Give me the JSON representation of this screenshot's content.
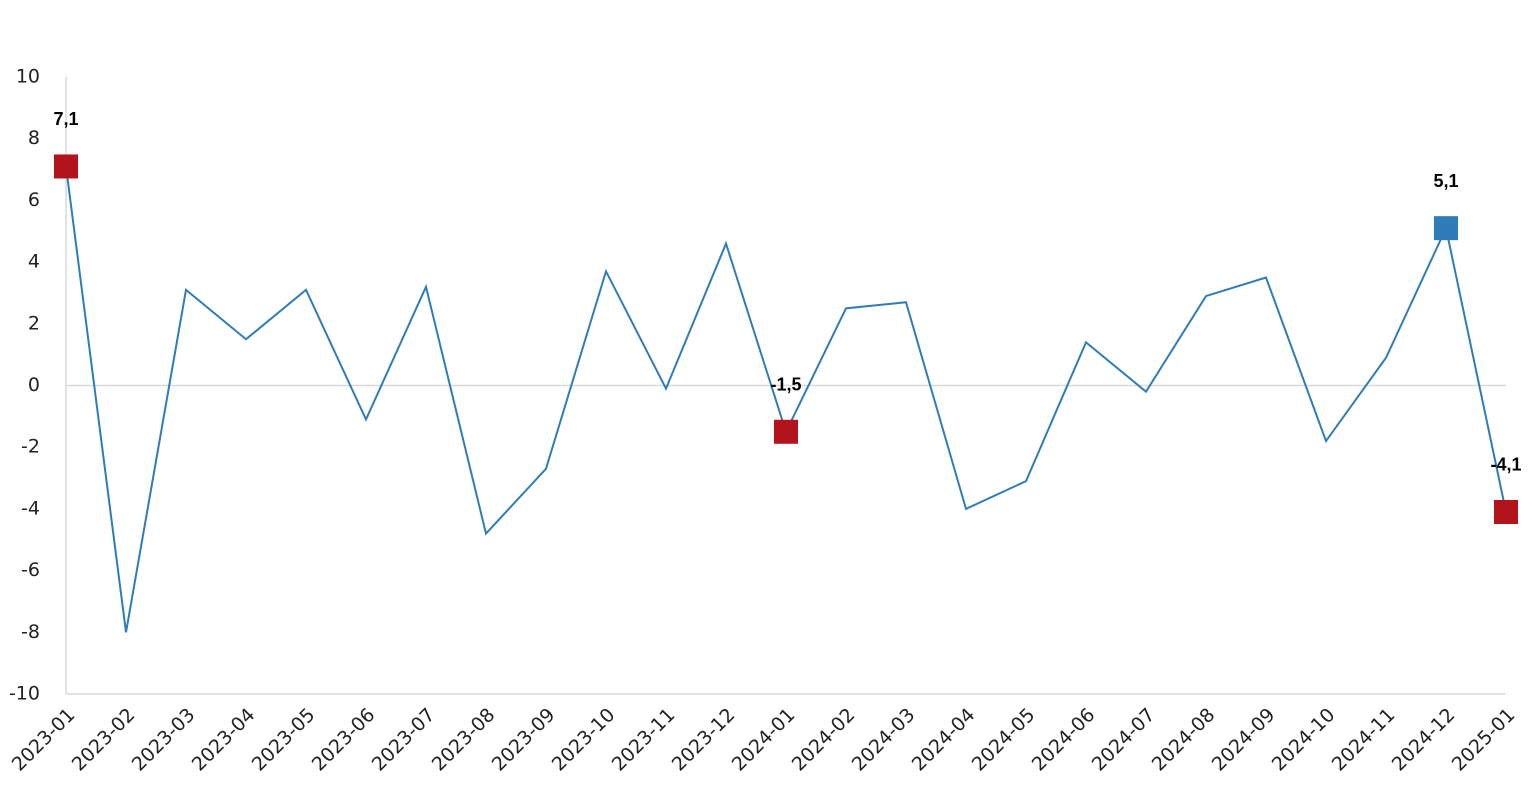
{
  "chart_data": {
    "type": "line",
    "categories": [
      "2023-01",
      "2023-02",
      "2023-03",
      "2023-04",
      "2023-05",
      "2023-06",
      "2023-07",
      "2023-08",
      "2023-09",
      "2023-10",
      "2023-11",
      "2023-12",
      "2024-01",
      "2024-02",
      "2024-03",
      "2024-04",
      "2024-05",
      "2024-06",
      "2024-07",
      "2024-08",
      "2024-09",
      "2024-10",
      "2024-11",
      "2024-12",
      "2025-01"
    ],
    "values": [
      7.1,
      -8.0,
      3.1,
      1.5,
      3.1,
      -1.1,
      3.2,
      -4.8,
      -2.7,
      3.7,
      -0.1,
      4.6,
      -1.5,
      2.5,
      2.7,
      -4.0,
      -3.1,
      1.4,
      -0.2,
      2.9,
      3.5,
      -1.8,
      0.9,
      5.1,
      -4.1
    ],
    "value_labels": [
      "7,1",
      null,
      null,
      null,
      null,
      null,
      null,
      null,
      null,
      null,
      null,
      null,
      "-1,5",
      null,
      null,
      null,
      null,
      null,
      null,
      null,
      null,
      null,
      null,
      "5,1",
      "-4,1"
    ],
    "marker_colors": [
      "#b3141c",
      null,
      null,
      null,
      null,
      null,
      null,
      null,
      null,
      null,
      null,
      null,
      "#b3141c",
      null,
      null,
      null,
      null,
      null,
      null,
      null,
      null,
      null,
      null,
      "#2f7db8",
      "#b3141c"
    ],
    "color": "#2f7db8",
    "ylim": [
      -10,
      10
    ],
    "yticks": [
      -10,
      -8,
      -6,
      -4,
      -2,
      0,
      2,
      4,
      6,
      8,
      10
    ],
    "zero_line": true
  }
}
